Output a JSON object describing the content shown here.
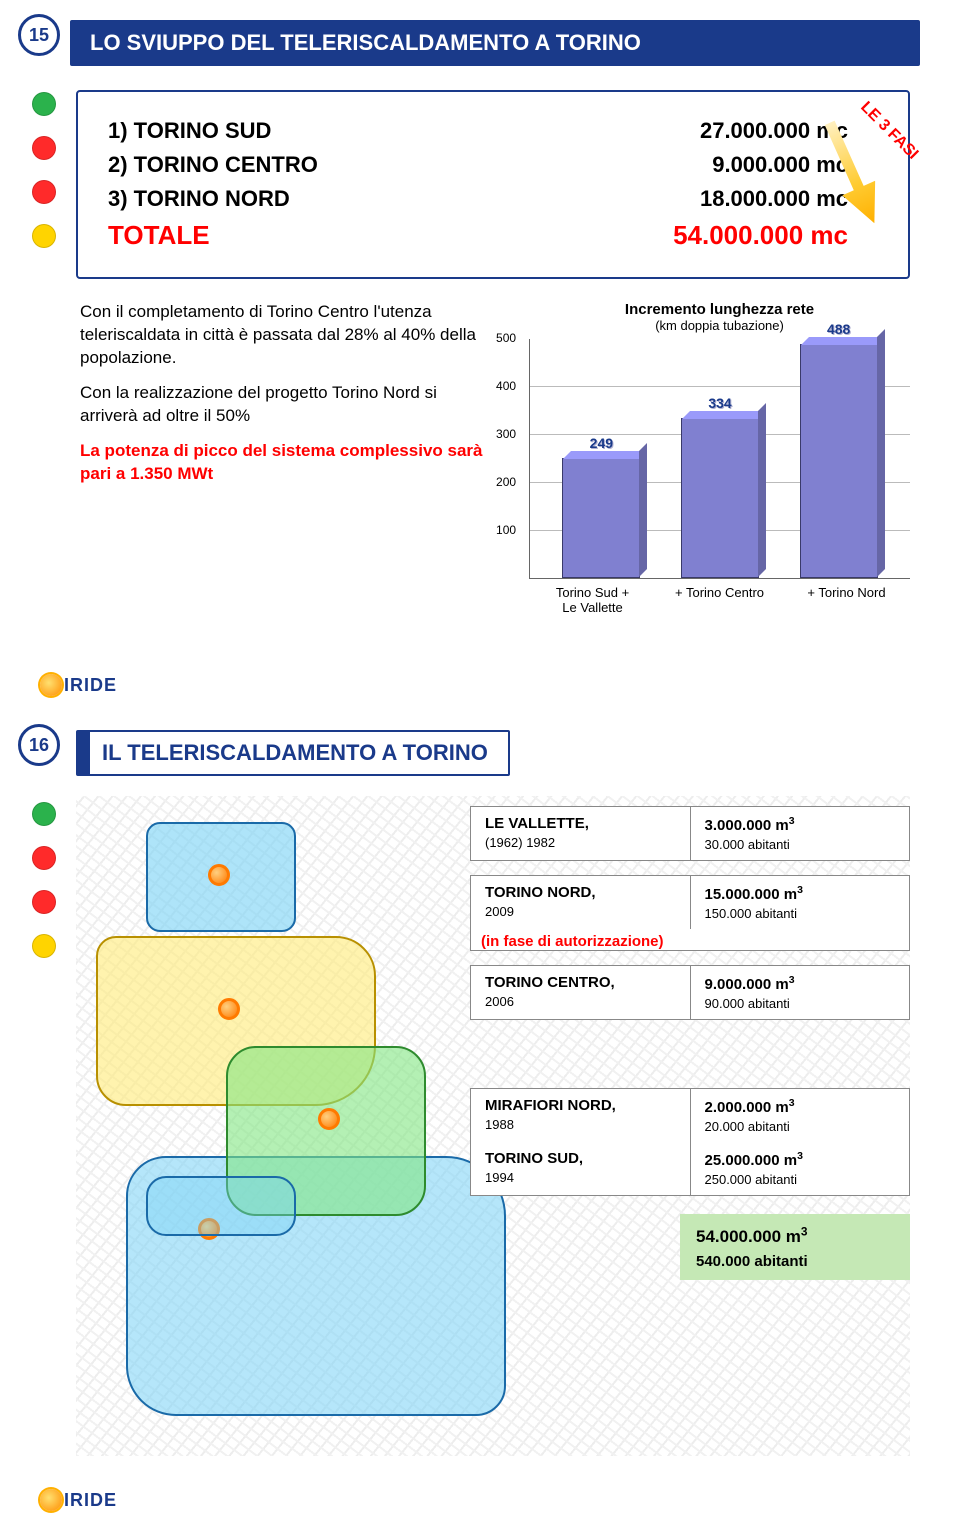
{
  "slide1": {
    "number": "15",
    "title": "LO SVIUPPO DEL TELERISCALDAMENTO A TORINO",
    "bullet_colors": [
      "#2bb24c",
      "#ff2a2a",
      "#ff2a2a",
      "#ffd400"
    ],
    "rows": [
      {
        "label": "1) TORINO SUD",
        "value": "27.000.000 mc"
      },
      {
        "label": "2) TORINO CENTRO",
        "value": "9.000.000 mc"
      },
      {
        "label": "3) TORINO NORD",
        "value": "18.000.000 mc"
      }
    ],
    "total": {
      "label": "TOTALE",
      "value": "54.000.000 mc"
    },
    "fasi_label": "LE 3 FASI",
    "paras": [
      "Con il completamento di Torino Centro l'utenza teleriscaldata in città è passata dal 28% al 40% della popolazione.",
      "Con la realizzazione del progetto Torino Nord si arriverà ad oltre il 50%",
      "La potenza di picco del sistema complessivo sarà pari a 1.350 MWt"
    ],
    "chart": {
      "title": "Incremento lunghezza rete",
      "subtitle": "(km doppia tubazione)",
      "ymax": 500,
      "ytick_step": 100,
      "bar_color": "#8080d0",
      "bars": [
        {
          "label": "Torino Sud + Le Vallette",
          "value": 249
        },
        {
          "label": "+ Torino Centro",
          "value": 334
        },
        {
          "label": "+ Torino Nord",
          "value": 488
        }
      ]
    },
    "logo": "IRIDE"
  },
  "slide2": {
    "number": "16",
    "title": "IL TELERISCALDAMENTO A TORINO",
    "bullet_colors": [
      "#2bb24c",
      "#ff2a2a",
      "#ff2a2a",
      "#ffd400"
    ],
    "cards": [
      {
        "left_top": "LE VALLETTE,",
        "left_sub": "(1962) 1982",
        "right_top": "3.000.000 m³",
        "right_sub": "30.000 abitanti"
      },
      {
        "left_top": "TORINO NORD,",
        "left_sub": "2009",
        "right_top": "15.000.000 m³",
        "right_sub": "150.000 abitanti",
        "note": "(in fase di autorizzazione)"
      },
      {
        "left_top": "TORINO CENTRO,",
        "left_sub": "2006",
        "right_top": "9.000.000 m³",
        "right_sub": "90.000 abitanti"
      },
      {
        "left_top": "MIRAFIORI NORD,",
        "left_sub": "1988",
        "right_top": "2.000.000 m³",
        "right_sub": "20.000 abitanti",
        "second_left_top": "TORINO SUD,",
        "second_left_sub": "1994",
        "second_right_top": "25.000.000 m³",
        "second_right_sub": "250.000 abitanti"
      }
    ],
    "total": {
      "top": "54.000.000 m³",
      "sub": "540.000 abitanti"
    },
    "logo": "IRIDE"
  }
}
